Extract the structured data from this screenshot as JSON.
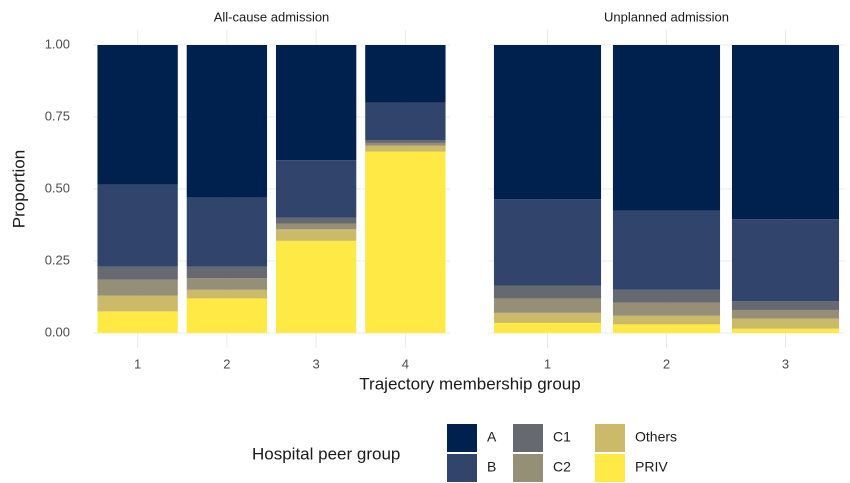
{
  "chart_data": {
    "type": "bar",
    "stacked": true,
    "x_label": "Trajectory membership group",
    "y_label": "Proportion",
    "legend_title": "Hospital peer group",
    "grid": true,
    "series": [
      {
        "name": "A",
        "color": "#00204d"
      },
      {
        "name": "B",
        "color": "#31446b"
      },
      {
        "name": "C1",
        "color": "#666970"
      },
      {
        "name": "C2",
        "color": "#958f78"
      },
      {
        "name": "Others",
        "color": "#cbba69"
      },
      {
        "name": "PRIV",
        "color": "#ffe945"
      }
    ],
    "ylim": [
      0,
      1
    ],
    "yticks": [
      {
        "value": 0,
        "label": "0.00"
      },
      {
        "value": 0.25,
        "label": "0.25"
      },
      {
        "value": 0.5,
        "label": "0.50"
      },
      {
        "value": 0.75,
        "label": "0.75"
      },
      {
        "value": 1,
        "label": "1.00"
      }
    ],
    "facets": [
      {
        "title": "All-cause admission",
        "categories": [
          "1",
          "2",
          "3",
          "4"
        ],
        "values": [
          [
            0.485,
            0.53,
            0.4,
            0.2
          ],
          [
            0.285,
            0.24,
            0.2,
            0.13
          ],
          [
            0.045,
            0.04,
            0.02,
            0.01
          ],
          [
            0.055,
            0.04,
            0.02,
            0.01
          ],
          [
            0.055,
            0.03,
            0.04,
            0.02
          ],
          [
            0.075,
            0.12,
            0.32,
            0.63
          ]
        ]
      },
      {
        "title": "Unplanned admission",
        "categories": [
          "1",
          "2",
          "3"
        ],
        "values": [
          [
            0.535,
            0.575,
            0.605
          ],
          [
            0.3,
            0.275,
            0.285
          ],
          [
            0.045,
            0.045,
            0.03
          ],
          [
            0.05,
            0.045,
            0.03
          ],
          [
            0.035,
            0.03,
            0.035
          ],
          [
            0.035,
            0.03,
            0.015
          ]
        ]
      }
    ]
  }
}
